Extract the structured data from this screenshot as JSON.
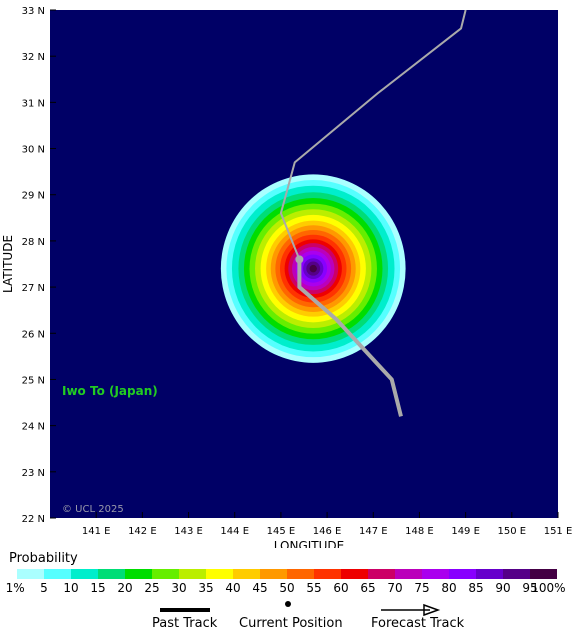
{
  "map": {
    "region_label": "Iwo To (Japan)",
    "copyright": "© UCL 2025",
    "x_axis_title": "LONGITUDE",
    "y_axis_title": "LATITUDE",
    "lon_range": [
      140,
      151
    ],
    "lat_range": [
      22,
      33
    ],
    "lon_ticks": [
      "141 E",
      "142 E",
      "143 E",
      "144 E",
      "145 E",
      "146 E",
      "147 E",
      "148 E",
      "149 E",
      "150 E",
      "151 E"
    ],
    "lat_ticks": [
      "22 N",
      "23 N",
      "24 N",
      "25 N",
      "26 N",
      "27 N",
      "28 N",
      "29 N",
      "30 N",
      "31 N",
      "32 N",
      "33 N"
    ],
    "background_color": "#000066",
    "label_color": "#22cc22"
  },
  "probability_field": {
    "center": {
      "lon": 145.7,
      "lat": 27.4
    },
    "rings_pct": [
      1,
      5,
      10,
      15,
      20,
      25,
      30,
      35,
      40,
      45,
      50,
      55,
      60,
      65,
      70,
      75,
      80,
      85,
      90,
      95
    ],
    "ring_radii_deg": [
      2.0,
      1.88,
      1.76,
      1.62,
      1.5,
      1.38,
      1.26,
      1.14,
      1.02,
      0.92,
      0.82,
      0.72,
      0.62,
      0.54,
      0.46,
      0.38,
      0.3,
      0.22,
      0.15,
      0.08
    ]
  },
  "past_track": [
    {
      "lon": 147.6,
      "lat": 24.2
    },
    {
      "lon": 147.4,
      "lat": 25.0
    },
    {
      "lon": 146.2,
      "lat": 26.3
    },
    {
      "lon": 145.4,
      "lat": 27.0
    },
    {
      "lon": 145.4,
      "lat": 27.6
    }
  ],
  "current_position": {
    "lon": 145.4,
    "lat": 27.6
  },
  "forecast_track": [
    {
      "lon": 145.4,
      "lat": 27.6
    },
    {
      "lon": 145.0,
      "lat": 28.6
    },
    {
      "lon": 145.3,
      "lat": 29.7
    },
    {
      "lon": 147.1,
      "lat": 31.2
    },
    {
      "lon": 148.9,
      "lat": 32.6
    },
    {
      "lon": 149.0,
      "lat": 33.0
    }
  ],
  "legend": {
    "title": "Probability",
    "labels": [
      "1%",
      "5",
      "10",
      "15",
      "20",
      "25",
      "30",
      "35",
      "40",
      "45",
      "50",
      "55",
      "60",
      "65",
      "70",
      "75",
      "80",
      "85",
      "90",
      "95",
      "100%"
    ],
    "colors": [
      "#aaffff",
      "#55ffff",
      "#00eecc",
      "#00dd77",
      "#00dd00",
      "#66ee00",
      "#bbee00",
      "#ffff00",
      "#ffcc00",
      "#ff9900",
      "#ff6600",
      "#ff3300",
      "#ee0000",
      "#cc0066",
      "#bb00bb",
      "#aa00ee",
      "#8800ff",
      "#6600cc",
      "#550088",
      "#440044"
    ],
    "keys": {
      "past": "Past Track",
      "current": "Current Position",
      "forecast": "Forecast Track"
    }
  }
}
